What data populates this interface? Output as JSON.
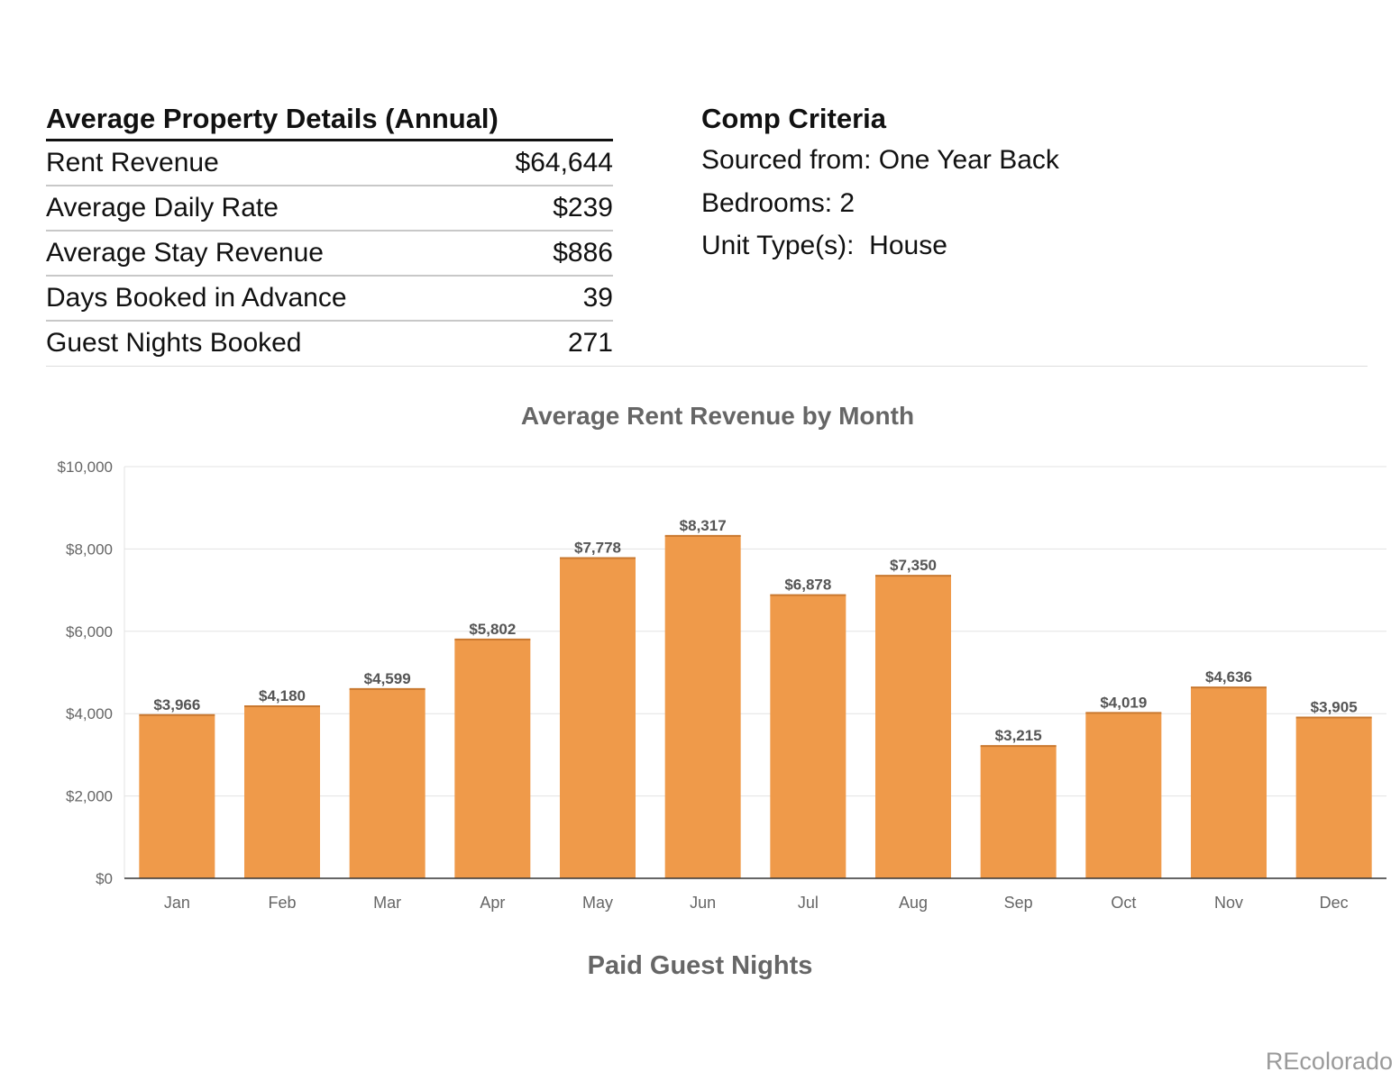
{
  "details": {
    "title": "Average Property Details (Annual)",
    "rows": [
      {
        "label": "Rent Revenue",
        "value": "$64,644"
      },
      {
        "label": "Average Daily Rate",
        "value": "$239"
      },
      {
        "label": "Average Stay Revenue",
        "value": "$886"
      },
      {
        "label": "Days Booked in Advance",
        "value": "39"
      },
      {
        "label": "Guest Nights Booked",
        "value": "271"
      }
    ]
  },
  "criteria": {
    "title": "Comp Criteria",
    "lines": [
      "Sourced from: One Year Back",
      "Bedrooms: 2",
      "Unit Type(s):  House"
    ]
  },
  "chart_data": {
    "type": "bar",
    "title": "Average Rent Revenue by Month",
    "xlabel": "",
    "ylabel": "",
    "categories": [
      "Jan",
      "Feb",
      "Mar",
      "Apr",
      "May",
      "Jun",
      "Jul",
      "Aug",
      "Sep",
      "Oct",
      "Nov",
      "Dec"
    ],
    "values": [
      3966,
      4180,
      4599,
      5802,
      7778,
      8317,
      6878,
      7350,
      3215,
      4019,
      4636,
      3905
    ],
    "data_labels": [
      "$3,966",
      "$4,180",
      "$4,599",
      "$5,802",
      "$7,778",
      "$8,317",
      "$6,878",
      "$7,350",
      "$3,215",
      "$4,019",
      "$4,636",
      "$3,905"
    ],
    "yticks": [
      "$0",
      "$2,000",
      "$4,000",
      "$6,000",
      "$8,000",
      "$10,000"
    ],
    "ylim": [
      0,
      10000
    ],
    "grid": true,
    "legend": "none",
    "bar_color": "#ef9a4a"
  },
  "footer": {
    "title": "Paid Guest Nights"
  },
  "brand": "REcolorado"
}
